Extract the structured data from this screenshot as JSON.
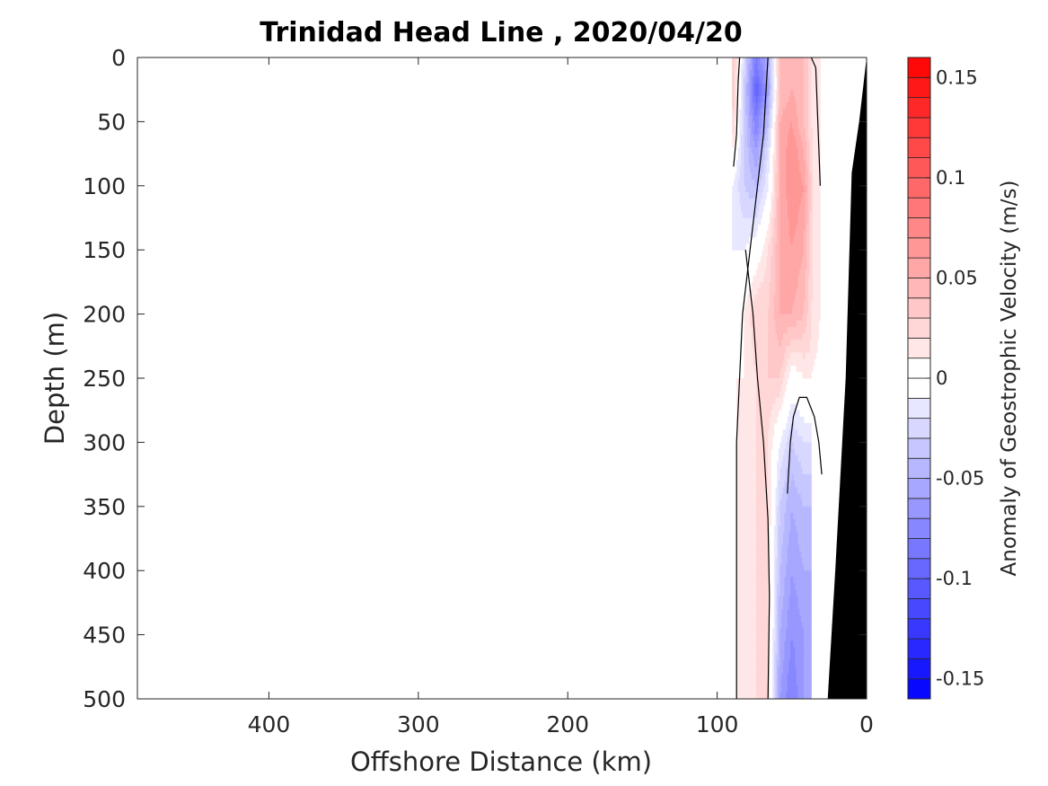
{
  "chart_data": {
    "type": "heatmap",
    "title": "Trinidad Head Line , 2020/04/20",
    "xlabel": "Offshore Distance (km)",
    "ylabel": "Depth (m)",
    "xlim": [
      488,
      0
    ],
    "ylim": [
      500,
      0
    ],
    "x_reversed": true,
    "y_reversed": true,
    "x_ticks": [
      400,
      300,
      200,
      100,
      0
    ],
    "x_tick_labels": [
      "400",
      "300",
      "200",
      "100",
      "0"
    ],
    "y_ticks": [
      0,
      50,
      100,
      150,
      200,
      250,
      300,
      350,
      400,
      450,
      500
    ],
    "y_tick_labels": [
      "0",
      "50",
      "100",
      "150",
      "200",
      "250",
      "300",
      "350",
      "400",
      "450",
      "500"
    ],
    "grid": false,
    "colorbar": {
      "label": "Anomaly of Geostrophic Velocity (m/s)",
      "limits": [
        -0.16,
        0.16
      ],
      "levels": 32,
      "ticks": [
        0.15,
        0.1,
        0.05,
        0,
        -0.05,
        -0.1,
        -0.15
      ],
      "tick_labels": [
        "0.15",
        "0.1",
        "0.05",
        "0",
        "-0.05",
        "-0.1",
        "-0.15"
      ],
      "colormap": "blue-white-red",
      "positive_color": "#ff0000",
      "negative_color": "#0000ff"
    },
    "field": {
      "x_km": [
        90,
        82,
        74,
        66,
        58,
        50,
        42,
        34,
        30
      ],
      "depth_m": [
        0,
        25,
        50,
        75,
        100,
        150,
        200,
        250,
        300,
        350,
        400,
        450,
        500
      ],
      "values_m_s": [
        [
          0.04,
          -0.02,
          -0.08,
          -0.05,
          0.04,
          0.04,
          0.04,
          0.01,
          null
        ],
        [
          0.04,
          -0.03,
          -0.1,
          -0.06,
          0.04,
          0.05,
          0.04,
          0.01,
          null
        ],
        [
          0.03,
          -0.03,
          -0.08,
          -0.04,
          0.05,
          0.06,
          0.04,
          0.01,
          null
        ],
        [
          0.01,
          -0.03,
          -0.06,
          -0.02,
          0.05,
          0.07,
          0.05,
          0.01,
          null
        ],
        [
          -0.01,
          -0.03,
          -0.04,
          -0.01,
          0.05,
          0.07,
          0.06,
          0.01,
          null
        ],
        [
          -0.01,
          -0.01,
          0.0,
          0.02,
          0.05,
          0.06,
          0.05,
          0.01,
          null
        ],
        [
          -0.01,
          0.01,
          0.03,
          0.03,
          0.05,
          0.05,
          0.04,
          0.01,
          null
        ],
        [
          null,
          0.01,
          0.02,
          0.03,
          0.03,
          0.0,
          0.01,
          null,
          null
        ],
        [
          null,
          0.01,
          0.02,
          0.02,
          -0.01,
          -0.03,
          -0.02,
          null,
          null
        ],
        [
          null,
          0.01,
          0.02,
          0.02,
          -0.03,
          -0.05,
          -0.04,
          null,
          null
        ],
        [
          null,
          0.01,
          0.02,
          0.02,
          -0.04,
          -0.06,
          -0.05,
          null,
          null
        ],
        [
          null,
          0.01,
          0.02,
          0.02,
          -0.05,
          -0.07,
          -0.06,
          null,
          null
        ],
        [
          null,
          0.01,
          0.02,
          0.02,
          -0.06,
          -0.08,
          -0.06,
          null,
          null
        ]
      ]
    },
    "zero_contours": [
      {
        "x_km": [
          89,
          87,
          86,
          85,
          86,
          87
        ],
        "depth_m": [
          85,
          60,
          20,
          0,
          0,
          0
        ]
      },
      {
        "x_km": [
          66,
          67,
          69,
          75,
          83,
          87,
          87
        ],
        "depth_m": [
          0,
          20,
          60,
          120,
          200,
          300,
          500
        ]
      },
      {
        "x_km": [
          37,
          34,
          31
        ],
        "depth_m": [
          0,
          8,
          100
        ]
      },
      {
        "x_km": [
          66,
          65,
          66,
          69,
          73,
          76,
          81
        ],
        "depth_m": [
          500,
          420,
          360,
          300,
          250,
          200,
          150
        ]
      },
      {
        "x_km": [
          30,
          32,
          35,
          40,
          45,
          49,
          51,
          53
        ],
        "depth_m": [
          325,
          300,
          280,
          265,
          265,
          280,
          300,
          340
        ]
      }
    ],
    "bathymetry_km_depth_m": [
      {
        "x_km": 0,
        "depth_m": 0
      },
      {
        "x_km": 5,
        "depth_m": 50
      },
      {
        "x_km": 10,
        "depth_m": 90
      },
      {
        "x_km": 14,
        "depth_m": 250
      },
      {
        "x_km": 21,
        "depth_m": 400
      },
      {
        "x_km": 26,
        "depth_m": 500
      }
    ],
    "land_color": "#000000"
  }
}
